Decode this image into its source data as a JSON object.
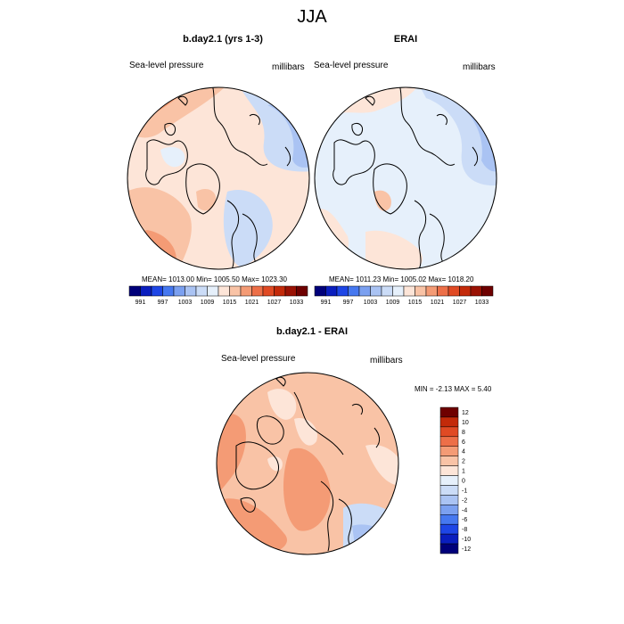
{
  "main_title": "JJA",
  "colors": {
    "land_outline": "#000000",
    "abs_scale": [
      "#00007a",
      "#0a1ebe",
      "#1e46e6",
      "#4678f0",
      "#7ba0f0",
      "#aac3f3",
      "#cbdcf7",
      "#e6f0fb",
      "#fde5d8",
      "#f9c3a6",
      "#f49b75",
      "#ed6f48",
      "#e04a24",
      "#c32a0a",
      "#9a1204",
      "#6e0000"
    ],
    "diff_scale": [
      "#00007a",
      "#0a1ebe",
      "#1e46e6",
      "#4678f0",
      "#7ba0f0",
      "#aac3f3",
      "#cbdcf7",
      "#e6f0fb",
      "#fde5d8",
      "#f9c3a6",
      "#f49b75",
      "#ed6f48",
      "#e04a24",
      "#c32a0a",
      "#6e0000"
    ]
  },
  "chart_data": [
    {
      "type": "heatmap",
      "title": "b.day2.1 (yrs 1-3)",
      "left_label": "Sea-level pressure",
      "right_label": "millibars",
      "stats": "MEAN= 1013.00  Min= 1005.50  Max= 1023.30",
      "mean": 1013.0,
      "min": 1005.5,
      "max": 1023.3,
      "colorbar_ticks": [
        "991",
        "997",
        "1003",
        "1009",
        "1015",
        "1021",
        "1027",
        "1033"
      ]
    },
    {
      "type": "heatmap",
      "title": "ERAI",
      "left_label": "Sea-level pressure",
      "right_label": "millibars",
      "stats": "MEAN= 1011.23  Min= 1005.02  Max= 1018.20",
      "mean": 1011.23,
      "min": 1005.02,
      "max": 1018.2,
      "colorbar_ticks": [
        "991",
        "997",
        "1003",
        "1009",
        "1015",
        "1021",
        "1027",
        "1033"
      ]
    },
    {
      "type": "heatmap",
      "title": "b.day2.1 - ERAI",
      "left_label": "Sea-level pressure",
      "right_label": "millibars",
      "stats": "MIN =  -2.13 MAX =   5.40",
      "min": -2.13,
      "max": 5.4,
      "colorbar_ticks": [
        "12",
        "10",
        "8",
        "6",
        "4",
        "2",
        "1",
        "0",
        "-1",
        "-2",
        "-4",
        "-6",
        "-8",
        "-10",
        "-12"
      ]
    }
  ]
}
